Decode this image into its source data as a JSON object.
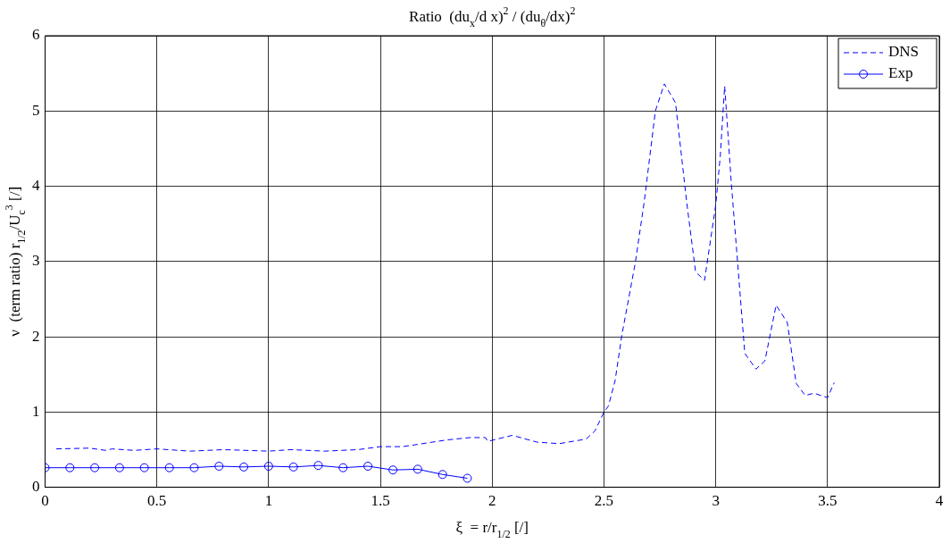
{
  "chart_data": {
    "type": "line",
    "title": "Ratio  (du$_{x}$/d x)$^{2}$ / (du$_{θ}$/dx)$^{2}$",
    "xlabel": "ξ  = r/r$_{1/2}$ [/]",
    "ylabel": "ν  (term ratio) r$_{1/2}$/U$_{c}$$^{3}$ [/]",
    "xlim": [
      0,
      4
    ],
    "xticks": [
      0,
      0.5,
      1,
      1.5,
      2,
      2.5,
      3,
      3.5,
      4
    ],
    "ylim": [
      0,
      6
    ],
    "yticks": [
      0,
      1,
      2,
      3,
      4,
      5,
      6
    ],
    "grid": true,
    "legend": "top right",
    "series": [
      {
        "name": "DNS",
        "color": "#0000ff",
        "line_style": "dashed",
        "marker": "none",
        "x": [
          0.05,
          0.2,
          0.27,
          0.3,
          0.4,
          0.5,
          0.65,
          0.8,
          1.0,
          1.1,
          1.25,
          1.4,
          1.5,
          1.6,
          1.8,
          1.9,
          1.97,
          1.98,
          2.09,
          2.2,
          2.3,
          2.42,
          2.46,
          2.5,
          2.52,
          2.55,
          2.58,
          2.64,
          2.68,
          2.73,
          2.77,
          2.82,
          2.87,
          2.91,
          2.95,
          3.0,
          3.02,
          3.04,
          3.07,
          3.13,
          3.18,
          3.22,
          3.27,
          3.32,
          3.36,
          3.4,
          3.44,
          3.5,
          3.53
        ],
        "values": [
          0.51,
          0.52,
          0.49,
          0.51,
          0.49,
          0.51,
          0.48,
          0.5,
          0.48,
          0.5,
          0.48,
          0.5,
          0.54,
          0.54,
          0.63,
          0.66,
          0.66,
          0.61,
          0.69,
          0.6,
          0.58,
          0.64,
          0.75,
          1.0,
          1.08,
          1.42,
          2.02,
          2.98,
          3.79,
          5.0,
          5.36,
          5.11,
          3.79,
          2.86,
          2.75,
          3.75,
          4.39,
          5.33,
          4.03,
          1.78,
          1.57,
          1.68,
          2.42,
          2.19,
          1.38,
          1.22,
          1.25,
          1.19,
          1.39
        ]
      },
      {
        "name": "Exp",
        "color": "#0000ff",
        "line_style": "solid",
        "marker": "circle",
        "x": [
          0,
          0.111,
          0.222,
          0.333,
          0.444,
          0.556,
          0.667,
          0.778,
          0.889,
          1.0,
          1.111,
          1.222,
          1.333,
          1.444,
          1.556,
          1.667,
          1.778,
          1.889
        ],
        "values": [
          0.26,
          0.26,
          0.26,
          0.26,
          0.26,
          0.26,
          0.26,
          0.28,
          0.27,
          0.28,
          0.27,
          0.29,
          0.26,
          0.28,
          0.23,
          0.24,
          0.17,
          0.12
        ]
      }
    ]
  }
}
